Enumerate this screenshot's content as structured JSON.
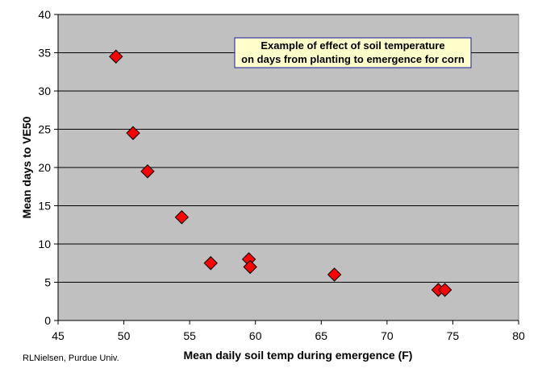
{
  "chart_data": {
    "type": "scatter",
    "title": "",
    "xlabel": "Mean daily soil temp during emergence (F)",
    "ylabel": "Mean days to VE50",
    "xlim": [
      45,
      80
    ],
    "ylim": [
      0,
      40
    ],
    "x_ticks": [
      "45",
      "50",
      "55",
      "60",
      "65",
      "70",
      "75",
      "80"
    ],
    "y_ticks": [
      "0",
      "5",
      "10",
      "15",
      "20",
      "25",
      "30",
      "35",
      "40"
    ],
    "grid": "horizontal",
    "legend": "none",
    "marker": "diamond",
    "marker_color": "#ff0000",
    "plot_background": "#c0c0c0",
    "points": [
      {
        "x": 49.4,
        "y": 34.5
      },
      {
        "x": 50.7,
        "y": 24.5
      },
      {
        "x": 51.8,
        "y": 19.5
      },
      {
        "x": 54.4,
        "y": 13.5
      },
      {
        "x": 56.6,
        "y": 7.5
      },
      {
        "x": 59.5,
        "y": 8.0
      },
      {
        "x": 59.6,
        "y": 7.0
      },
      {
        "x": 66.0,
        "y": 6.0
      },
      {
        "x": 73.9,
        "y": 4.0
      },
      {
        "x": 74.4,
        "y": 4.0
      }
    ],
    "annotation": {
      "line1": "Example of effect of soil temperature",
      "line2": "on days from planting to emergence for corn"
    }
  },
  "credit": "RLNielsen, Purdue Univ."
}
